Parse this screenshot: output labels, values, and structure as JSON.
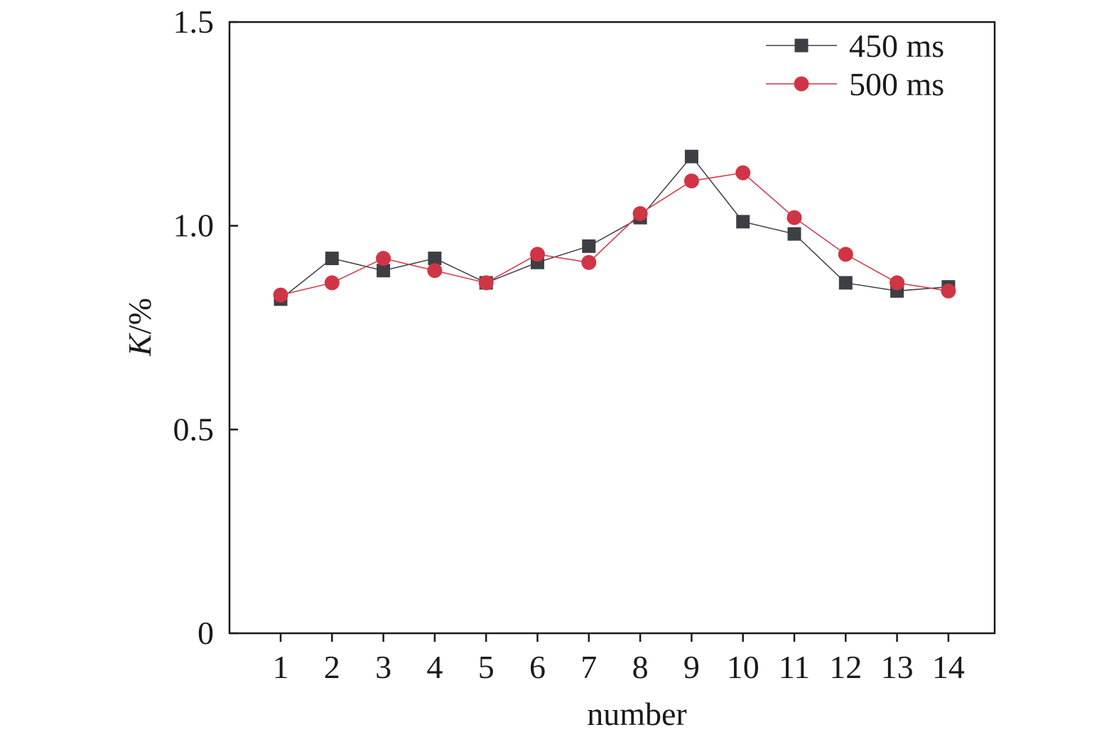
{
  "chart_data": {
    "type": "line",
    "title": "",
    "xlabel": "number",
    "ylabel": "K/%",
    "ylabel_parts": {
      "symbol": "K",
      "unit": "/%"
    },
    "categories": [
      "1",
      "2",
      "3",
      "4",
      "5",
      "6",
      "7",
      "8",
      "9",
      "10",
      "11",
      "12",
      "13",
      "14"
    ],
    "x_ticks": [
      "1",
      "2",
      "3",
      "4",
      "5",
      "6",
      "7",
      "8",
      "9",
      "10",
      "11",
      "12",
      "13",
      "14"
    ],
    "ylim": [
      0,
      1.5
    ],
    "y_ticks": [
      "0",
      "0.5",
      "1.0",
      "1.5"
    ],
    "y_tick_values": [
      0,
      0.5,
      1.0,
      1.5
    ],
    "grid": false,
    "legend_position": "top-right",
    "series": [
      {
        "name": "450 ms",
        "marker": "square",
        "color": "#3d3f44",
        "values": [
          0.82,
          0.92,
          0.89,
          0.92,
          0.86,
          0.91,
          0.95,
          1.02,
          1.17,
          1.01,
          0.98,
          0.86,
          0.84,
          0.85
        ]
      },
      {
        "name": "500 ms",
        "marker": "circle",
        "color": "#d03545",
        "values": [
          0.83,
          0.86,
          0.92,
          0.89,
          0.86,
          0.93,
          0.91,
          1.03,
          1.11,
          1.13,
          1.02,
          0.93,
          0.86,
          0.84
        ]
      }
    ]
  }
}
